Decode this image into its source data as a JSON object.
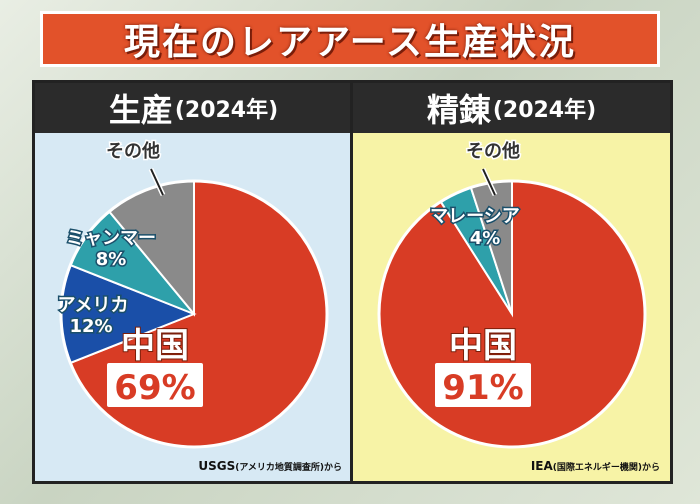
{
  "title": "現在のレアアース生産状況",
  "chart_data": [
    {
      "type": "pie",
      "title": "生産",
      "subtitle": "(2024年)",
      "slices": [
        {
          "label": "中国",
          "value": 69,
          "value_label": "69%",
          "color": "#d83c25"
        },
        {
          "label": "アメリカ",
          "value": 12,
          "value_label": "12%",
          "color": "#1a4fa8"
        },
        {
          "label": "ミャンマー",
          "value": 8,
          "value_label": "8%",
          "color": "#2ea0aa"
        },
        {
          "label": "その他",
          "value": 11,
          "value_label": "",
          "color": "#8a8a8a"
        }
      ],
      "source": "USGS",
      "source_detail": "(アメリカ地質調査所)から"
    },
    {
      "type": "pie",
      "title": "精錬",
      "subtitle": "(2024年)",
      "slices": [
        {
          "label": "中国",
          "value": 91,
          "value_label": "91%",
          "color": "#d83c25"
        },
        {
          "label": "マレーシア",
          "value": 4,
          "value_label": "4%",
          "color": "#2ea0aa"
        },
        {
          "label": "その他",
          "value": 5,
          "value_label": "",
          "color": "#8a8a8a"
        }
      ],
      "source": "IEA",
      "source_detail": "(国際エネルギー機関)から"
    }
  ]
}
